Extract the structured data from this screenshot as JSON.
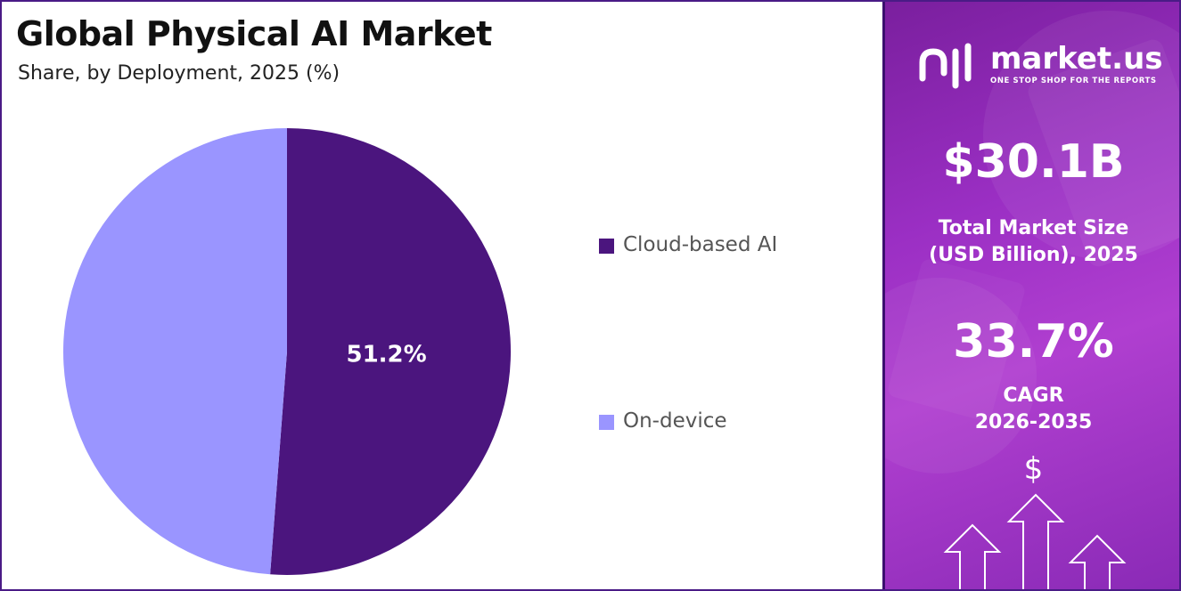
{
  "header": {
    "title": "Global Physical AI Market",
    "subtitle": "Share, by Deployment, 2025 (%)"
  },
  "chart_data": {
    "type": "pie",
    "title": "Global Physical AI Market",
    "subtitle": "Share, by Deployment, 2025 (%)",
    "categories": [
      "Cloud-based AI",
      "On-device"
    ],
    "values": [
      51.2,
      48.8
    ],
    "data_labels": [
      "51.2%",
      ""
    ],
    "colors": [
      "#4b157e",
      "#9a95ff"
    ],
    "legend_position": "right"
  },
  "sidebar": {
    "brand": {
      "name": "market.us",
      "tagline": "ONE STOP SHOP FOR THE REPORTS"
    },
    "market_size": {
      "value": "$30.1B",
      "label_line1": "Total Market Size",
      "label_line2": "(USD Billion), 2025"
    },
    "cagr": {
      "value": "33.7%",
      "label_line1": "CAGR",
      "label_line2": "2026-2035"
    },
    "dollar_symbol": "$",
    "icons": [
      "market-us-logo-icon",
      "growth-arrows-icon"
    ]
  }
}
